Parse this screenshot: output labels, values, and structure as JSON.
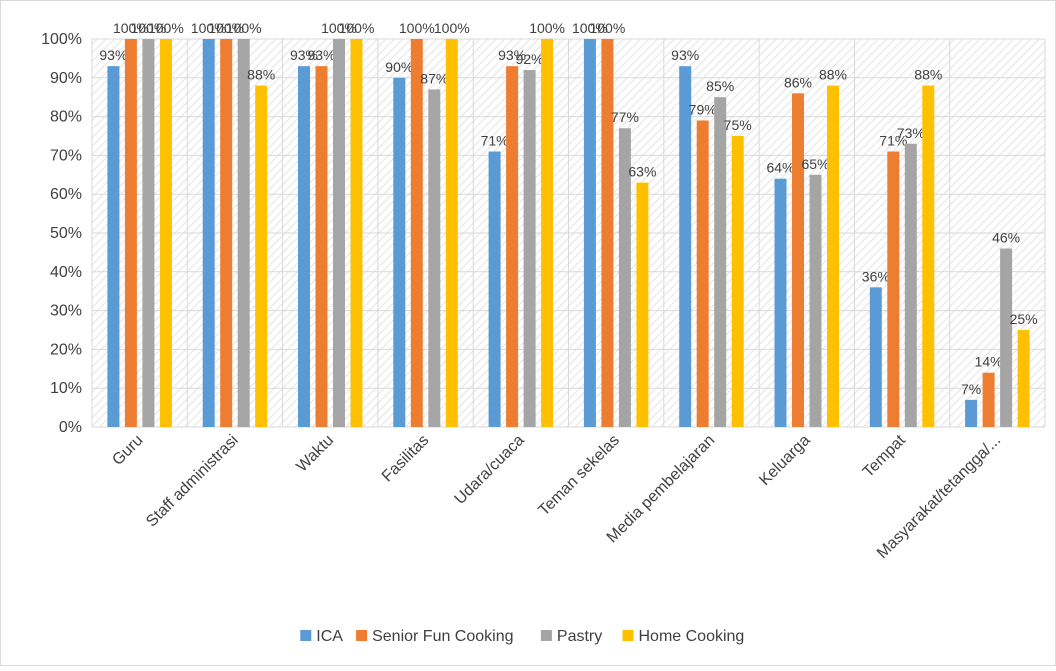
{
  "chart_data": {
    "type": "bar",
    "categories": [
      "Guru",
      "Staff administrasi",
      "Waktu",
      "Fasilitas",
      "Udara/cuaca",
      "Teman sekelas",
      "Media pembelajaran",
      "Keluarga",
      "Tempat",
      "Masyarakat/tetangga/..."
    ],
    "series": [
      {
        "name": "ICA",
        "color": "#5b9bd5",
        "values": [
          93,
          100,
          93,
          90,
          71,
          100,
          93,
          64,
          36,
          7
        ],
        "value_labels": [
          "93%",
          "100%",
          "93%",
          "90%",
          "71%",
          "100%",
          "93%",
          "64%",
          "36%",
          "7%"
        ]
      },
      {
        "name": "Senior Fun Cooking",
        "color": "#ed7d31",
        "values": [
          100,
          100,
          93,
          100,
          93,
          100,
          79,
          86,
          71,
          14
        ],
        "value_labels": [
          "100%",
          "100%",
          "93%",
          "100%",
          "93%",
          "100%",
          "79%",
          "86%",
          "71%",
          "14%"
        ]
      },
      {
        "name": "Pastry",
        "color": "#a5a5a5",
        "values": [
          100,
          100,
          100,
          87,
          92,
          77,
          85,
          65,
          73,
          46
        ],
        "value_labels": [
          "100%",
          "100%",
          "100%",
          "87%",
          "92%",
          "77%",
          "85%",
          "65%",
          "73%",
          "46%"
        ]
      },
      {
        "name": "Home Cooking",
        "color": "#ffc000",
        "values": [
          100,
          88,
          100,
          100,
          100,
          63,
          75,
          88,
          88,
          25
        ],
        "value_labels": [
          "100%",
          "88%",
          "100%",
          "100%",
          "100%",
          "63%",
          "75%",
          "88%",
          "88%",
          "25%"
        ]
      }
    ],
    "ylim": [
      0,
      100
    ],
    "yticks": [
      {
        "value": 0,
        "label": "0%"
      },
      {
        "value": 10,
        "label": "10%"
      },
      {
        "value": 20,
        "label": "20%"
      },
      {
        "value": 30,
        "label": "30%"
      },
      {
        "value": 40,
        "label": "40%"
      },
      {
        "value": 50,
        "label": "50%"
      },
      {
        "value": 60,
        "label": "60%"
      },
      {
        "value": 70,
        "label": "70%"
      },
      {
        "value": 80,
        "label": "80%"
      },
      {
        "value": 90,
        "label": "90%"
      },
      {
        "value": 100,
        "label": "100%"
      }
    ],
    "grid": true,
    "legend": "bottom"
  }
}
